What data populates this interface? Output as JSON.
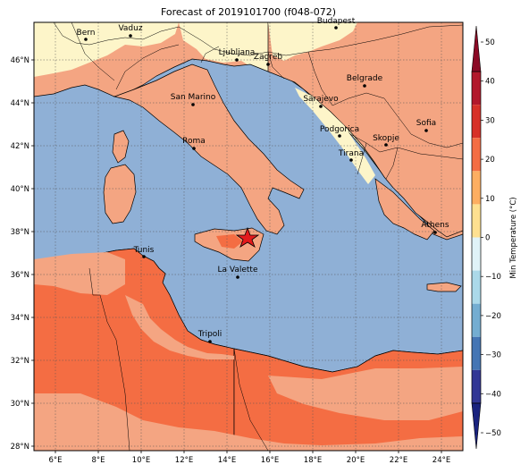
{
  "title": "Forecast of 2019101700 (f048-072)",
  "colorbar": {
    "label": "Min Temperature (°C)",
    "ticks": [
      "50",
      "40",
      "30",
      "20",
      "10",
      "0",
      "−10",
      "−20",
      "−30",
      "−40",
      "−50"
    ],
    "colors": [
      "#67001f",
      "#b2182b",
      "#d6604d",
      "#f4a582",
      "#fddbc7",
      "#f7f7f7",
      "#d1e5f0",
      "#92c5de",
      "#4393c3",
      "#2166ac",
      "#053061"
    ],
    "bins": [
      "#8b0a25",
      "#b2182b",
      "#d73027",
      "#f46d43",
      "#fdae61",
      "#fee090",
      "#e0f3f8",
      "#abd9e9",
      "#74add1",
      "#4575b4",
      "#313695",
      "#1a237e"
    ]
  },
  "map": {
    "x_ticks": [
      "6°E",
      "8°E",
      "10°E",
      "12°E",
      "14°E",
      "16°E",
      "18°E",
      "20°E",
      "22°E",
      "24°E"
    ],
    "y_ticks": [
      "46°N",
      "44°N",
      "42°N",
      "40°N",
      "38°N",
      "36°N",
      "34°N",
      "32°N",
      "30°N",
      "28°N"
    ],
    "sea_color": "#8fb0d6",
    "cities": [
      {
        "name": "Bern"
      },
      {
        "name": "Vaduz"
      },
      {
        "name": "Budapest"
      },
      {
        "name": "Ljubljana"
      },
      {
        "name": "Zagreb"
      },
      {
        "name": "Belgrade"
      },
      {
        "name": "San Marino"
      },
      {
        "name": "Sarajevo"
      },
      {
        "name": "Sofia"
      },
      {
        "name": "Podgorica"
      },
      {
        "name": "Skopje"
      },
      {
        "name": "Roma"
      },
      {
        "name": "Tirana"
      },
      {
        "name": "Athens"
      },
      {
        "name": "Tunis"
      },
      {
        "name": "La Valette"
      },
      {
        "name": "Tripoli"
      }
    ]
  }
}
